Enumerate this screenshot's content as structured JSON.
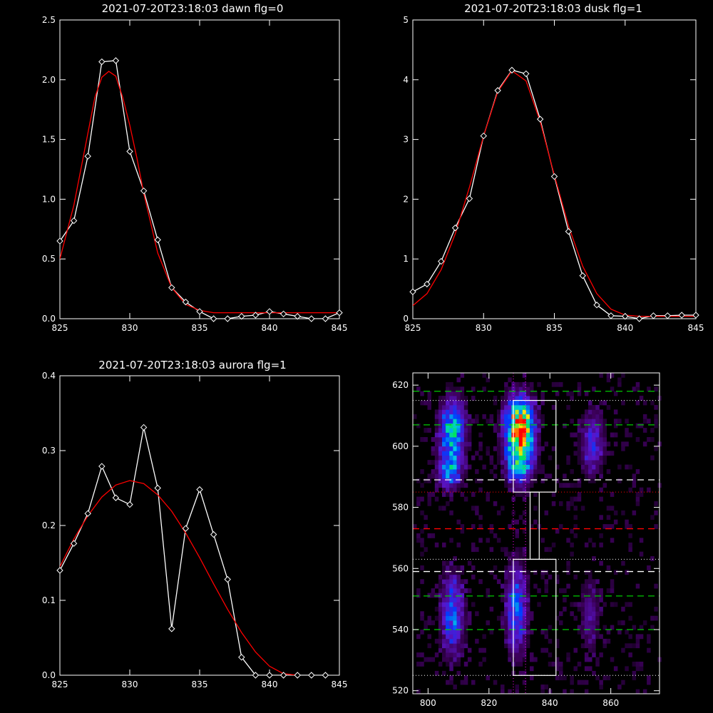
{
  "chart_data": [
    {
      "type": "line",
      "title": "2021-07-20T23:18:03 dawn flg=0",
      "xlabel": "",
      "ylabel": "",
      "xlim": [
        825,
        845
      ],
      "ylim": [
        0,
        2.5
      ],
      "xticks": [
        825,
        830,
        835,
        840,
        845
      ],
      "yticks": [
        0,
        0.5,
        1.0,
        1.5,
        2.0,
        2.5
      ],
      "ytick_labels": [
        "0.0",
        "0.5",
        "1.0",
        "1.5",
        "2.0",
        "2.5"
      ],
      "series": [
        {
          "kind": "data",
          "color": "#ffffff",
          "marker": "diamond",
          "x": [
            825,
            826,
            827,
            828,
            829,
            830,
            831,
            832,
            833,
            834,
            835,
            836,
            837,
            838,
            839,
            840,
            841,
            842,
            843,
            844,
            845
          ],
          "y": [
            0.65,
            0.82,
            1.36,
            2.15,
            2.16,
            1.4,
            1.07,
            0.66,
            0.26,
            0.14,
            0.06,
            0.0,
            0.0,
            0.02,
            0.03,
            0.06,
            0.04,
            0.02,
            0.0,
            0.0,
            0.05
          ]
        },
        {
          "kind": "fit",
          "color": "#ff0000",
          "x": [
            825,
            826,
            827,
            827.5,
            828,
            828.5,
            829,
            829.5,
            830,
            830.5,
            831,
            832,
            833,
            834,
            835,
            836,
            837,
            838,
            839,
            840,
            841,
            842,
            843,
            844,
            845
          ],
          "y": [
            0.5,
            0.95,
            1.55,
            1.85,
            2.02,
            2.07,
            2.03,
            1.85,
            1.62,
            1.35,
            1.05,
            0.55,
            0.26,
            0.12,
            0.07,
            0.05,
            0.05,
            0.05,
            0.05,
            0.05,
            0.05,
            0.05,
            0.05,
            0.05,
            0.05
          ]
        }
      ]
    },
    {
      "type": "line",
      "title": "2021-07-20T23:18:03 dusk flg=1",
      "xlabel": "",
      "ylabel": "",
      "xlim": [
        825,
        845
      ],
      "ylim": [
        0,
        5
      ],
      "xticks": [
        825,
        830,
        835,
        840,
        845
      ],
      "yticks": [
        0,
        1,
        2,
        3,
        4,
        5
      ],
      "ytick_labels": [
        "0",
        "1",
        "2",
        "3",
        "4",
        "5"
      ],
      "series": [
        {
          "kind": "data",
          "color": "#ffffff",
          "marker": "diamond",
          "x": [
            825,
            826,
            827,
            828,
            829,
            830,
            831,
            832,
            833,
            834,
            835,
            836,
            837,
            838,
            839,
            840,
            841,
            842,
            843,
            844,
            845
          ],
          "y": [
            0.45,
            0.58,
            0.96,
            1.52,
            2.01,
            3.06,
            3.82,
            4.16,
            4.1,
            3.34,
            2.38,
            1.46,
            0.72,
            0.23,
            0.05,
            0.04,
            0.0,
            0.05,
            0.05,
            0.06,
            0.06
          ]
        },
        {
          "kind": "fit",
          "color": "#ff0000",
          "x": [
            825,
            826,
            827,
            828,
            829,
            830,
            831,
            832,
            833,
            834,
            835,
            836,
            837,
            838,
            839,
            840,
            841,
            842,
            843,
            844,
            845
          ],
          "y": [
            0.22,
            0.42,
            0.82,
            1.42,
            2.2,
            3.06,
            3.8,
            4.15,
            3.98,
            3.3,
            2.4,
            1.55,
            0.88,
            0.42,
            0.16,
            0.06,
            0.04,
            0.04,
            0.04,
            0.04,
            0.04
          ]
        }
      ]
    },
    {
      "type": "line",
      "title": "2021-07-20T23:18:03 aurora flg=1",
      "xlabel": "",
      "ylabel": "",
      "xlim": [
        825,
        845
      ],
      "ylim": [
        0,
        0.4
      ],
      "xticks": [
        825,
        830,
        835,
        840,
        845
      ],
      "yticks": [
        0,
        0.1,
        0.2,
        0.3,
        0.4
      ],
      "ytick_labels": [
        "0.0",
        "0.1",
        "0.2",
        "0.3",
        "0.4"
      ],
      "series": [
        {
          "kind": "data",
          "color": "#ffffff",
          "marker": "diamond",
          "x": [
            825,
            826,
            827,
            828,
            829,
            830,
            831,
            832,
            833,
            834,
            835,
            836,
            837,
            838,
            839,
            840,
            841,
            842,
            843,
            844
          ],
          "y": [
            0.14,
            0.176,
            0.216,
            0.279,
            0.237,
            0.228,
            0.331,
            0.25,
            0.062,
            0.196,
            0.248,
            0.188,
            0.128,
            0.024,
            0.0,
            0.0,
            0.0,
            0.0,
            0.0,
            0.0
          ]
        },
        {
          "kind": "fit",
          "color": "#ff0000",
          "x": [
            825,
            826,
            827,
            828,
            829,
            830,
            831,
            832,
            833,
            834,
            835,
            836,
            837,
            838,
            839,
            840,
            841,
            842
          ],
          "y": [
            0.145,
            0.182,
            0.213,
            0.238,
            0.254,
            0.26,
            0.256,
            0.241,
            0.219,
            0.19,
            0.157,
            0.122,
            0.088,
            0.057,
            0.031,
            0.012,
            0.002,
            0.0
          ]
        }
      ]
    },
    {
      "type": "heatmap",
      "title": "",
      "xlim": [
        795,
        876
      ],
      "ylim": [
        519,
        624
      ],
      "xticks": [
        800,
        820,
        840,
        860
      ],
      "yticks": [
        520,
        540,
        560,
        580,
        600,
        620
      ],
      "colormap": "rainbow",
      "blobs": [
        {
          "x": 808,
          "y": 605,
          "sx": 2.8,
          "sy": 7.0,
          "amp": 0.62
        },
        {
          "x": 807,
          "y": 592,
          "sx": 2.6,
          "sy": 4.0,
          "amp": 0.45
        },
        {
          "x": 830,
          "y": 607,
          "sx": 3.2,
          "sy": 6.0,
          "amp": 1.0
        },
        {
          "x": 830,
          "y": 595,
          "sx": 3.0,
          "sy": 5.0,
          "amp": 0.6
        },
        {
          "x": 854,
          "y": 601,
          "sx": 2.6,
          "sy": 7.0,
          "amp": 0.32
        },
        {
          "x": 808,
          "y": 545,
          "sx": 2.6,
          "sy": 9.0,
          "amp": 0.42
        },
        {
          "x": 829,
          "y": 547,
          "sx": 2.4,
          "sy": 10.0,
          "amp": 0.45
        },
        {
          "x": 853,
          "y": 545,
          "sx": 2.4,
          "sy": 9.0,
          "amp": 0.18
        }
      ],
      "dotted_lines_h": [
        {
          "y": 615,
          "color": "#ffffff"
        },
        {
          "y": 585,
          "color": "#ff0000"
        },
        {
          "y": 563,
          "color": "#ffffff"
        },
        {
          "y": 525,
          "color": "#ffffff"
        }
      ],
      "dotted_lines_v": [
        {
          "x": 828,
          "color": "#ff00ff"
        },
        {
          "x": 832,
          "color": "#ff00ff"
        }
      ],
      "dashed_lines_h": [
        {
          "y": 618,
          "color": "#00cc00"
        },
        {
          "y": 607,
          "color": "#00cc00"
        },
        {
          "y": 589,
          "color": "#ffffff"
        },
        {
          "y": 573,
          "color": "#ff0000"
        },
        {
          "y": 559,
          "color": "#ffffff"
        },
        {
          "y": 551,
          "color": "#00cc00"
        },
        {
          "y": 540,
          "color": "#00cc00"
        }
      ],
      "boxes": [
        {
          "x0": 828,
          "x1": 842,
          "y0": 585,
          "y1": 615
        },
        {
          "x0": 833.5,
          "x1": 836.5,
          "y0": 563,
          "y1": 585
        },
        {
          "x0": 828,
          "x1": 842,
          "y0": 525,
          "y1": 563
        }
      ]
    }
  ]
}
